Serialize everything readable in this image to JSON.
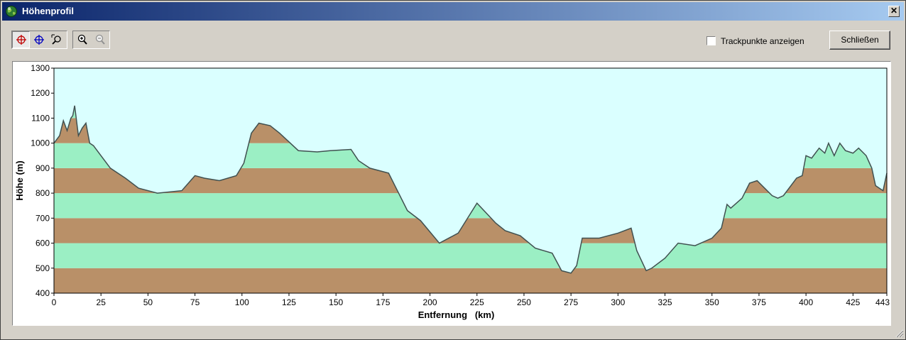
{
  "window": {
    "title": "Höhenprofil",
    "close_glyph": "✕"
  },
  "toolbar": {
    "tools": [
      {
        "icon": "crosshair-red-icon",
        "pressed": true
      },
      {
        "icon": "crosshair-blue-icon",
        "pressed": false
      },
      {
        "icon": "zoom-select-icon",
        "pressed": false
      }
    ],
    "zoom": [
      {
        "icon": "zoom-in-icon"
      },
      {
        "icon": "zoom-out-icon"
      }
    ]
  },
  "options": {
    "trackpoints_label": "Trackpunkte anzeigen",
    "trackpoints_checked": false
  },
  "close_button_label": "Schließen",
  "chart_data": {
    "type": "area",
    "title": "",
    "xlabel": "Entfernung   (km)",
    "ylabel": "Höhe (m)",
    "xlim": [
      0,
      443
    ],
    "ylim": [
      400,
      1300
    ],
    "x_ticks": [
      "0",
      "25",
      "50",
      "75",
      "100",
      "125",
      "150",
      "175",
      "200",
      "225",
      "250",
      "275",
      "300",
      "325",
      "350",
      "375",
      "400",
      "425",
      "443"
    ],
    "y_ticks": [
      "400",
      "500",
      "600",
      "700",
      "800",
      "900",
      "1000",
      "1100",
      "1200",
      "1300"
    ],
    "band_colors": [
      "#b99068",
      "#9befc4"
    ],
    "sky_color": "#daffff",
    "line_color": "#405050",
    "grid": false,
    "x": [
      0,
      3,
      5,
      7,
      9,
      10,
      11,
      13,
      15,
      17,
      19,
      21,
      25,
      30,
      38,
      45,
      55,
      68,
      75,
      80,
      88,
      97,
      101,
      105,
      109,
      115,
      120,
      130,
      140,
      147,
      158,
      162,
      168,
      178,
      188,
      195,
      205,
      215,
      225,
      235,
      240,
      248,
      256,
      265,
      270,
      275,
      278,
      281,
      290,
      300,
      307,
      310,
      315,
      318,
      325,
      332,
      341,
      350,
      355,
      358,
      360,
      366,
      370,
      374,
      378,
      382,
      385,
      388,
      395,
      398,
      400,
      403,
      407,
      410,
      412,
      415,
      418,
      421,
      425,
      428,
      432,
      435,
      437,
      439,
      441,
      443
    ],
    "y": [
      1000,
      1030,
      1090,
      1050,
      1100,
      1110,
      1150,
      1030,
      1060,
      1080,
      1000,
      990,
      950,
      900,
      860,
      820,
      800,
      810,
      870,
      860,
      850,
      870,
      920,
      1040,
      1080,
      1070,
      1040,
      970,
      965,
      970,
      975,
      930,
      900,
      880,
      730,
      690,
      600,
      640,
      760,
      680,
      650,
      630,
      580,
      560,
      490,
      480,
      510,
      620,
      620,
      640,
      660,
      570,
      490,
      500,
      540,
      600,
      590,
      620,
      660,
      755,
      740,
      780,
      840,
      850,
      820,
      790,
      780,
      790,
      860,
      870,
      950,
      940,
      980,
      960,
      1000,
      950,
      1000,
      970,
      960,
      980,
      950,
      900,
      830,
      820,
      810,
      880
    ]
  }
}
